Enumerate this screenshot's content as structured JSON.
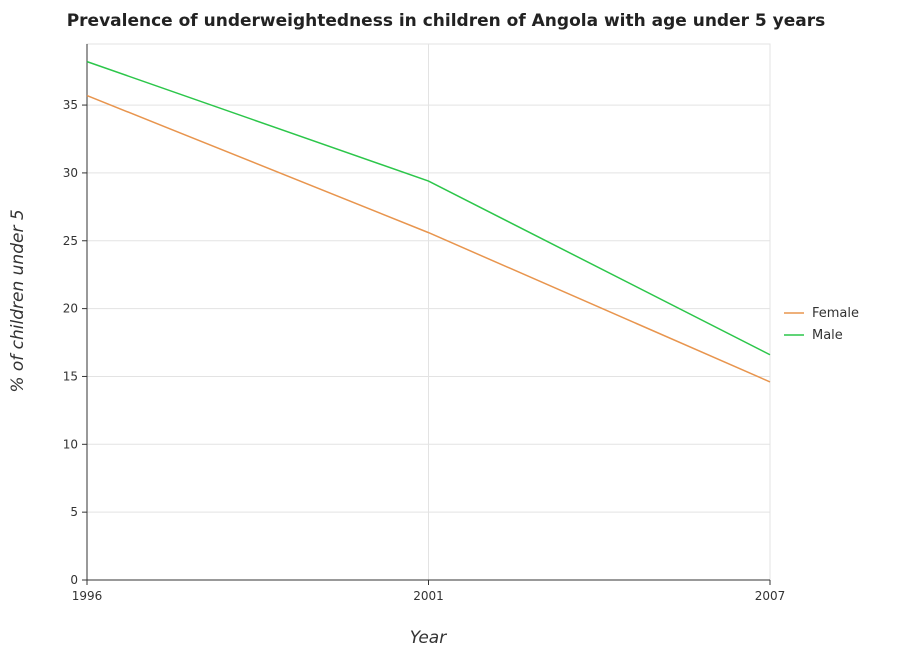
{
  "chart_data": {
    "type": "line",
    "title": "Prevalence of underweightedness in children of Angola with age under 5 years",
    "xlabel": "Year",
    "ylabel": "% of children under 5",
    "categories": [
      "1996",
      "2001",
      "2007"
    ],
    "series": [
      {
        "name": "Female",
        "values": [
          35.7,
          25.6,
          14.6
        ],
        "color": "#e8954e"
      },
      {
        "name": "Male",
        "values": [
          38.2,
          29.4,
          16.6
        ],
        "color": "#2cc64a"
      }
    ],
    "ylim": [
      0,
      39.5
    ],
    "yticks": [
      0,
      5,
      10,
      15,
      20,
      25,
      30,
      35
    ],
    "grid": true,
    "legend": "right"
  }
}
